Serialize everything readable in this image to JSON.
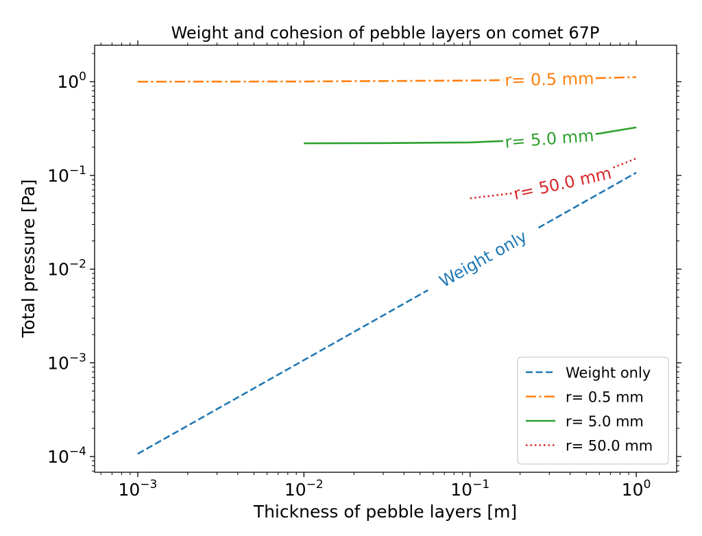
{
  "chart_data": {
    "type": "line",
    "title": "Weight and cohesion of pebble layers on comet 67P",
    "xlabel": "Thickness of pebble layers [m]",
    "ylabel": "Total pressure [Pa]",
    "x_scale": "log",
    "y_scale": "log",
    "xlim": [
      0.00055,
      1.75
    ],
    "ylim": [
      6.8e-05,
      2.45
    ],
    "x_ticks": [
      {
        "value": 0.001,
        "base": "10",
        "exp": "−3"
      },
      {
        "value": 0.01,
        "base": "10",
        "exp": "−2"
      },
      {
        "value": 0.1,
        "base": "10",
        "exp": "−1"
      },
      {
        "value": 1,
        "base": "10",
        "exp": "0"
      }
    ],
    "y_ticks": [
      {
        "value": 0.0001,
        "base": "10",
        "exp": "−4"
      },
      {
        "value": 0.001,
        "base": "10",
        "exp": "−3"
      },
      {
        "value": 0.01,
        "base": "10",
        "exp": "−2"
      },
      {
        "value": 0.1,
        "base": "10",
        "exp": "−1"
      },
      {
        "value": 1,
        "base": "10",
        "exp": "0"
      }
    ],
    "grid": false,
    "legend_position": "lower-right",
    "series": [
      {
        "name": "Weight only",
        "color": "#1f77b4",
        "style": "dashed",
        "x": [
          0.001,
          0.01,
          0.1,
          1
        ],
        "y": [
          0.000107,
          0.00107,
          0.0107,
          0.107
        ],
        "inline_label": "Weight only",
        "label_x": 0.12
      },
      {
        "name": "r= 0.5 mm",
        "color": "#ff7f0e",
        "style": "dashdot",
        "x": [
          0.001,
          0.01,
          0.1,
          0.3,
          1
        ],
        "y": [
          1.0,
          1.005,
          1.03,
          1.055,
          1.12
        ],
        "inline_label": "r= 0.5 mm",
        "label_x": 0.3
      },
      {
        "name": "r= 5.0 mm",
        "color": "#2ca02c",
        "style": "solid",
        "x": [
          0.01,
          0.03,
          0.1,
          0.3,
          0.6,
          1
        ],
        "y": [
          0.22,
          0.221,
          0.225,
          0.245,
          0.28,
          0.325
        ],
        "inline_label": "r= 5.0 mm",
        "label_x": 0.3
      },
      {
        "name": "r= 50.0 mm",
        "color": "#d62728",
        "style": "dotted",
        "x": [
          0.1,
          0.2,
          0.4,
          0.7,
          1
        ],
        "y": [
          0.057,
          0.066,
          0.085,
          0.118,
          0.152
        ],
        "inline_label": "r= 50.0 mm",
        "label_x": 0.36
      }
    ]
  }
}
